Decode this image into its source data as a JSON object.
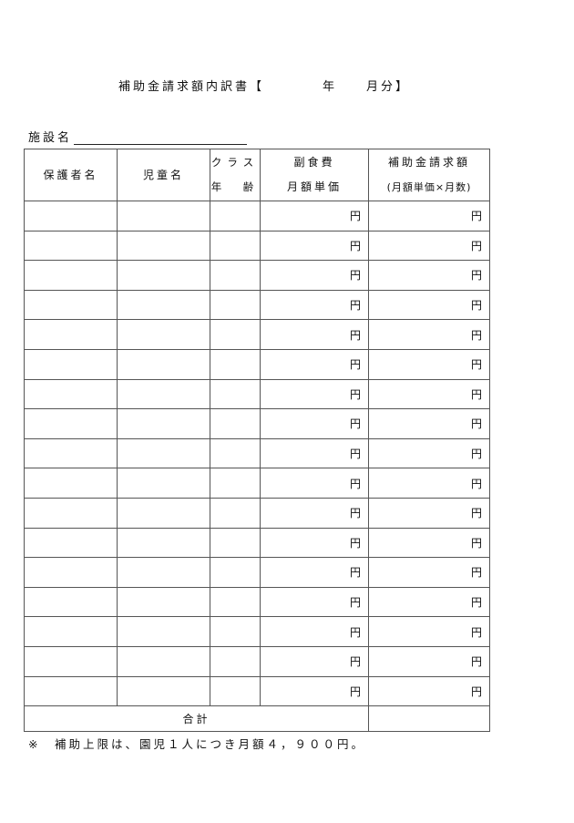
{
  "title": "補助金請求額内訳書【　　　　年　　月分】",
  "facility_label": "施設名",
  "table": {
    "headers": {
      "guardian": "保護者名",
      "child": "児童名",
      "class_line1": "クラス",
      "class_line2": "年　齢",
      "fee_line1": "副食費",
      "fee_line2": "月額単価",
      "claim_line1": "補助金請求額",
      "claim_line2": "(月額単価×月数)"
    },
    "rows": [
      {
        "fee_unit": "円",
        "claim_unit": "円"
      },
      {
        "fee_unit": "円",
        "claim_unit": "円"
      },
      {
        "fee_unit": "円",
        "claim_unit": "円"
      },
      {
        "fee_unit": "円",
        "claim_unit": "円"
      },
      {
        "fee_unit": "円",
        "claim_unit": "円"
      },
      {
        "fee_unit": "円",
        "claim_unit": "円"
      },
      {
        "fee_unit": "円",
        "claim_unit": "円"
      },
      {
        "fee_unit": "円",
        "claim_unit": "円"
      },
      {
        "fee_unit": "円",
        "claim_unit": "円"
      },
      {
        "fee_unit": "円",
        "claim_unit": "円"
      },
      {
        "fee_unit": "円",
        "claim_unit": "円"
      },
      {
        "fee_unit": "円",
        "claim_unit": "円"
      },
      {
        "fee_unit": "円",
        "claim_unit": "円"
      },
      {
        "fee_unit": "円",
        "claim_unit": "円"
      },
      {
        "fee_unit": "円",
        "claim_unit": "円"
      },
      {
        "fee_unit": "円",
        "claim_unit": "円"
      },
      {
        "fee_unit": "円",
        "claim_unit": "円"
      }
    ],
    "total_label": "合計"
  },
  "note": "※　補助上限は、園児１人につき月額４，９００円。"
}
